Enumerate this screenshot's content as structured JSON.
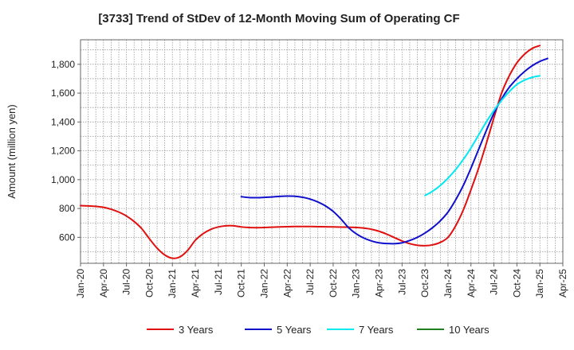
{
  "chart_data": {
    "type": "line",
    "title": "[3733]  Trend of StDev of 12-Month Moving Sum of Operating CF",
    "xlabel": "",
    "ylabel": "Amount (million yen)",
    "ylim": [
      420,
      1970
    ],
    "xlim_months": [
      0,
      63
    ],
    "y_ticks": [
      600,
      800,
      1000,
      1200,
      1400,
      1600,
      1800
    ],
    "y_tick_labels": [
      "600",
      "800",
      "1,000",
      "1,200",
      "1,400",
      "1,600",
      "1,800"
    ],
    "x_tick_months": [
      0,
      3,
      6,
      9,
      12,
      15,
      18,
      21,
      24,
      27,
      30,
      33,
      36,
      39,
      42,
      45,
      48,
      51,
      54,
      57,
      60,
      63
    ],
    "x_tick_labels": [
      "Jan-20",
      "Apr-20",
      "Jul-20",
      "Oct-20",
      "Jan-21",
      "Apr-21",
      "Jul-21",
      "Oct-21",
      "Jan-22",
      "Apr-22",
      "Jul-22",
      "Oct-22",
      "Jan-23",
      "Apr-23",
      "Jul-23",
      "Oct-23",
      "Jan-24",
      "Apr-24",
      "Jul-24",
      "Oct-24",
      "Jan-25",
      "Apr-25"
    ],
    "grid": true,
    "legend_position": "bottom",
    "series": [
      {
        "name": "3 Years",
        "color": "#e01010",
        "start_month": 0,
        "values": [
          820,
          818,
          815,
          808,
          795,
          775,
          748,
          710,
          660,
          590,
          525,
          478,
          455,
          465,
          510,
          580,
          625,
          655,
          672,
          680,
          680,
          672,
          668,
          667,
          668,
          670,
          672,
          674,
          675,
          675,
          675,
          674,
          673,
          672,
          671,
          670,
          668,
          664,
          656,
          642,
          622,
          598,
          575,
          556,
          545,
          542,
          548,
          565,
          600,
          680,
          790,
          930,
          1080,
          1250,
          1430,
          1600,
          1720,
          1810,
          1870,
          1910,
          1930
        ]
      },
      {
        "name": "5 Years",
        "color": "#1010cc",
        "start_month": 21,
        "values": [
          882,
          876,
          875,
          877,
          880,
          884,
          886,
          885,
          878,
          865,
          845,
          818,
          780,
          728,
          668,
          625,
          595,
          575,
          562,
          557,
          556,
          562,
          578,
          600,
          630,
          668,
          715,
          775,
          860,
          960,
          1080,
          1210,
          1340,
          1460,
          1560,
          1640,
          1700,
          1750,
          1790,
          1820,
          1840
        ]
      },
      {
        "name": "7 Years",
        "color": "#00e8f0",
        "start_month": 45,
        "values": [
          890,
          920,
          960,
          1010,
          1070,
          1140,
          1220,
          1310,
          1400,
          1480,
          1550,
          1610,
          1660,
          1690,
          1710,
          1720
        ]
      },
      {
        "name": "10 Years",
        "color": "#208020",
        "start_month": 0,
        "values": []
      }
    ]
  }
}
